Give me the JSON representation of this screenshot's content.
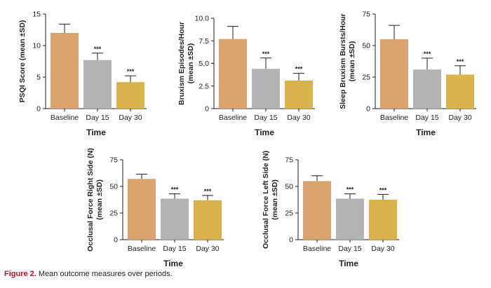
{
  "colors": {
    "baseline": "#d9a36e",
    "day15": "#b3b3b3",
    "day30": "#d8b24a",
    "axis": "#231f20",
    "caption_accent": "#c8102e"
  },
  "caption": {
    "figure_label": "Figure 2.",
    "text": " Mean outcome measures over periods."
  },
  "chart_data": [
    {
      "type": "bar",
      "title": "",
      "xlabel": "Time",
      "ylabel": [
        "PSQI Score (mean ±SD)"
      ],
      "categories": [
        "Baseline",
        "Day 15",
        "Day 30"
      ],
      "values": [
        12.0,
        7.7,
        4.2
      ],
      "errors": [
        1.4,
        1.1,
        1.0
      ],
      "significance": [
        "",
        "***",
        "***"
      ],
      "ylim": [
        0,
        15
      ],
      "yticks": [
        0,
        5,
        10,
        15
      ],
      "ytick_labels": [
        "0",
        "5",
        "10",
        "15"
      ]
    },
    {
      "type": "bar",
      "title": "",
      "xlabel": "Time",
      "ylabel": [
        "Bruxism Episodes/Hour",
        "(mean ±SD)"
      ],
      "categories": [
        "Baseline",
        "Day 15",
        "Day 30"
      ],
      "values": [
        7.7,
        4.4,
        3.1
      ],
      "errors": [
        1.4,
        1.2,
        0.8
      ],
      "significance": [
        "",
        "***",
        "***"
      ],
      "ylim": [
        0,
        10
      ],
      "yticks": [
        0,
        2.5,
        5,
        7.5,
        10
      ],
      "ytick_labels": [
        "0",
        "2.5",
        "5.0",
        "7.5",
        "10.0"
      ]
    },
    {
      "type": "bar",
      "title": "",
      "xlabel": "Time",
      "ylabel": [
        "Sleep Bruxism Bursts/Hour",
        "(mean ±SD)"
      ],
      "categories": [
        "Baseline",
        "Day 15",
        "Day 30"
      ],
      "values": [
        55,
        31,
        27
      ],
      "errors": [
        11,
        9,
        7
      ],
      "significance": [
        "",
        "***",
        "***"
      ],
      "ylim": [
        0,
        75
      ],
      "yticks": [
        0,
        25,
        50,
        75
      ],
      "ytick_labels": [
        "0",
        "25",
        "50",
        "75"
      ]
    },
    {
      "type": "bar",
      "title": "",
      "xlabel": "Time",
      "ylabel": [
        "Occlusal Force Right Side (N)",
        "(mean ±SD)"
      ],
      "categories": [
        "Baseline",
        "Day 15",
        "Day 30"
      ],
      "values": [
        57,
        38.5,
        37
      ],
      "errors": [
        4.5,
        4.5,
        4.5
      ],
      "significance": [
        "",
        "***",
        "***"
      ],
      "ylim": [
        0,
        75
      ],
      "yticks": [
        0,
        25,
        50,
        75
      ],
      "ytick_labels": [
        "0",
        "25",
        "50",
        "75"
      ]
    },
    {
      "type": "bar",
      "title": "",
      "xlabel": "Time",
      "ylabel": [
        "Occlusal Force Left Side (N)",
        "(mean ±SD)"
      ],
      "categories": [
        "Baseline",
        "Day 15",
        "Day 30"
      ],
      "values": [
        55,
        38.5,
        37.5
      ],
      "errors": [
        5,
        4.5,
        5
      ],
      "significance": [
        "",
        "***",
        "***"
      ],
      "ylim": [
        0,
        75
      ],
      "yticks": [
        0,
        25,
        50,
        75
      ],
      "ytick_labels": [
        "0",
        "25",
        "50",
        "75"
      ]
    }
  ]
}
